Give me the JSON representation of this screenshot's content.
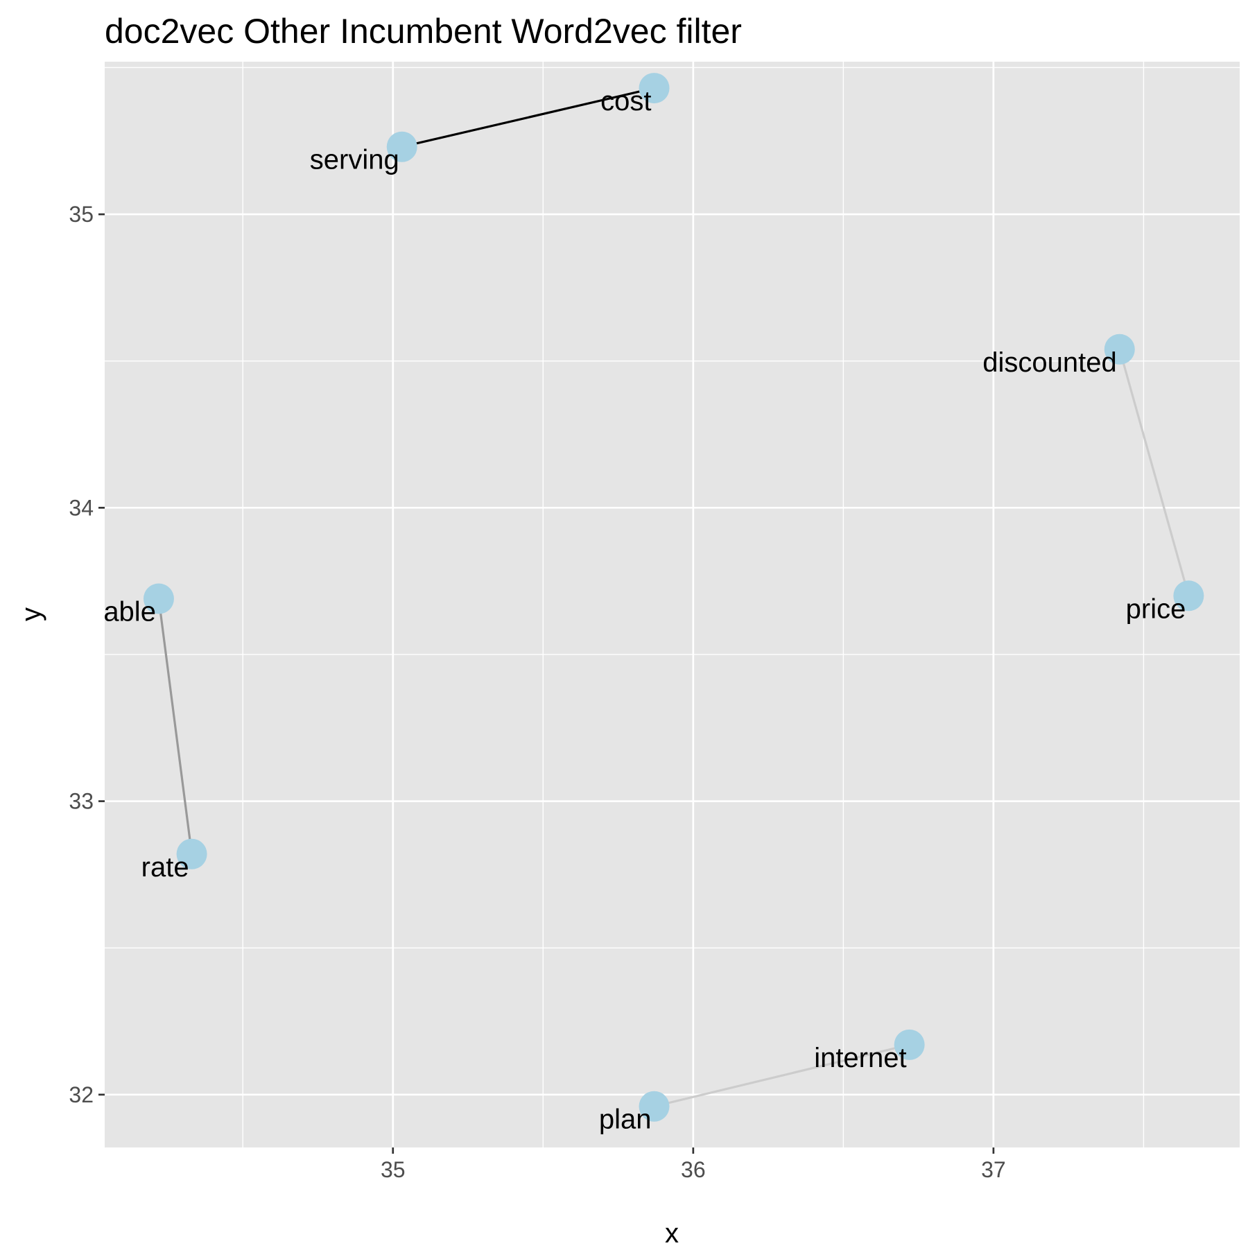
{
  "chart_data": {
    "type": "scatter",
    "title": "doc2vec Other Incumbent Word2vec filter",
    "xlabel": "x",
    "ylabel": "y",
    "xlim": [
      34.04,
      37.82
    ],
    "ylim": [
      31.82,
      35.52
    ],
    "x_ticks": [
      35,
      36,
      37
    ],
    "x_tick_labels": [
      "35",
      "36",
      "37"
    ],
    "y_ticks": [
      32,
      33,
      34,
      35
    ],
    "y_tick_labels": [
      "32",
      "33",
      "34",
      "35"
    ],
    "grid": true,
    "legend": "none",
    "points": [
      {
        "label": "cost",
        "x": 35.87,
        "y": 35.43
      },
      {
        "label": "serving",
        "x": 35.03,
        "y": 35.23
      },
      {
        "label": "discounted",
        "x": 37.42,
        "y": 34.54
      },
      {
        "label": "price",
        "x": 37.65,
        "y": 33.7
      },
      {
        "label": "able",
        "x": 34.22,
        "y": 33.69
      },
      {
        "label": "rate",
        "x": 34.33,
        "y": 32.82
      },
      {
        "label": "internet",
        "x": 36.72,
        "y": 32.17
      },
      {
        "label": "plan",
        "x": 35.87,
        "y": 31.96
      }
    ],
    "segments": [
      {
        "from": "serving",
        "to": "cost",
        "color": "#000000"
      },
      {
        "from": "discounted",
        "to": "price",
        "color": "#cccccc"
      },
      {
        "from": "able",
        "to": "rate",
        "color": "#999999"
      },
      {
        "from": "plan",
        "to": "internet",
        "color": "#cccccc"
      }
    ],
    "colors": {
      "panel_background": "#e5e5e5",
      "point_fill": "#a6d1e3",
      "grid": "#ffffff"
    }
  }
}
